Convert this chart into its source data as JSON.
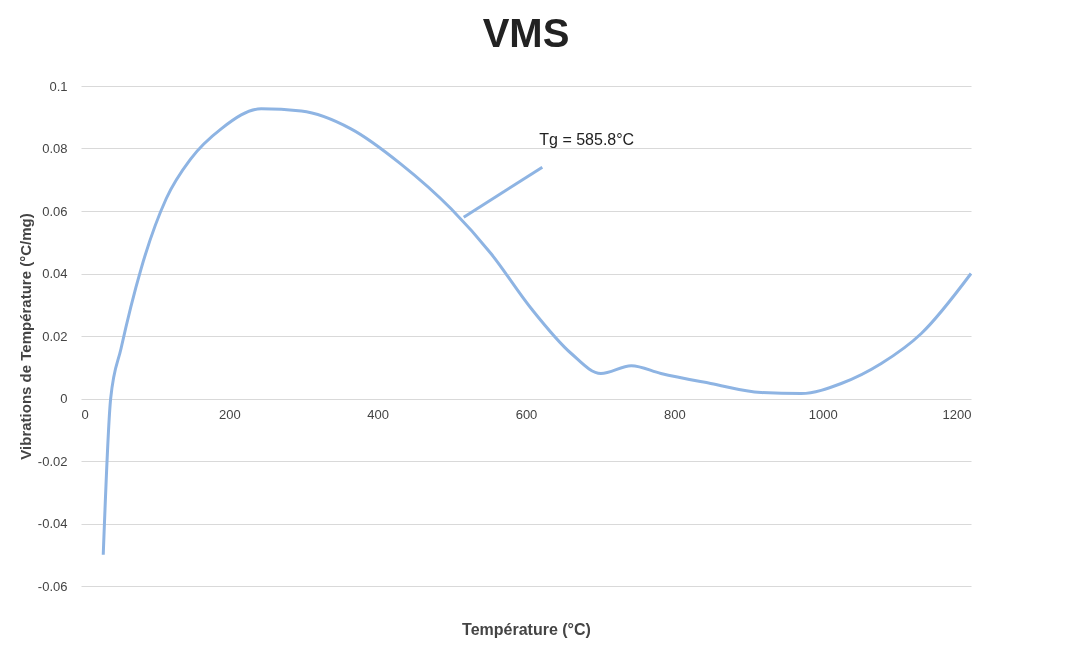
{
  "chart_data": {
    "type": "line",
    "title": "VMS",
    "xlabel": "Température (°C)",
    "ylabel": "Vibrations de Température (°C/mg)",
    "series": [
      {
        "color": "#8eb4e3",
        "x": [
          30,
          40,
          54,
          81,
          115,
          148,
          189,
          243,
          297,
          364,
          431,
          499,
          553,
          607,
          661,
          701,
          742,
          782,
          849,
          917,
          971,
          1025,
          1079,
          1133,
          1200
        ],
        "values": [
          -0.05,
          0,
          0.016,
          0.0415,
          0.064,
          0.0767,
          0.0863,
          0.0927,
          0.092,
          0.0863,
          0.0751,
          0.0607,
          0.0463,
          0.0288,
          0.0144,
          0.008,
          0.0105,
          0.008,
          0.0048,
          0.0019,
          0.0016,
          0.0048,
          0.0112,
          0.0208,
          0.04
        ]
      }
    ],
    "xlim": [
      0,
      1200
    ],
    "xticks": [
      0,
      200,
      400,
      600,
      800,
      1000,
      1200
    ],
    "ylim": [
      -0.06,
      0.1
    ],
    "yticks": [
      -0.06,
      -0.04,
      -0.02,
      0,
      0.02,
      0.04,
      0.06,
      0.08,
      0.1
    ],
    "grid": "y",
    "annotations": [
      {
        "text": "Tg = 585.8°C",
        "x": 512,
        "y": 0.057
      }
    ]
  }
}
